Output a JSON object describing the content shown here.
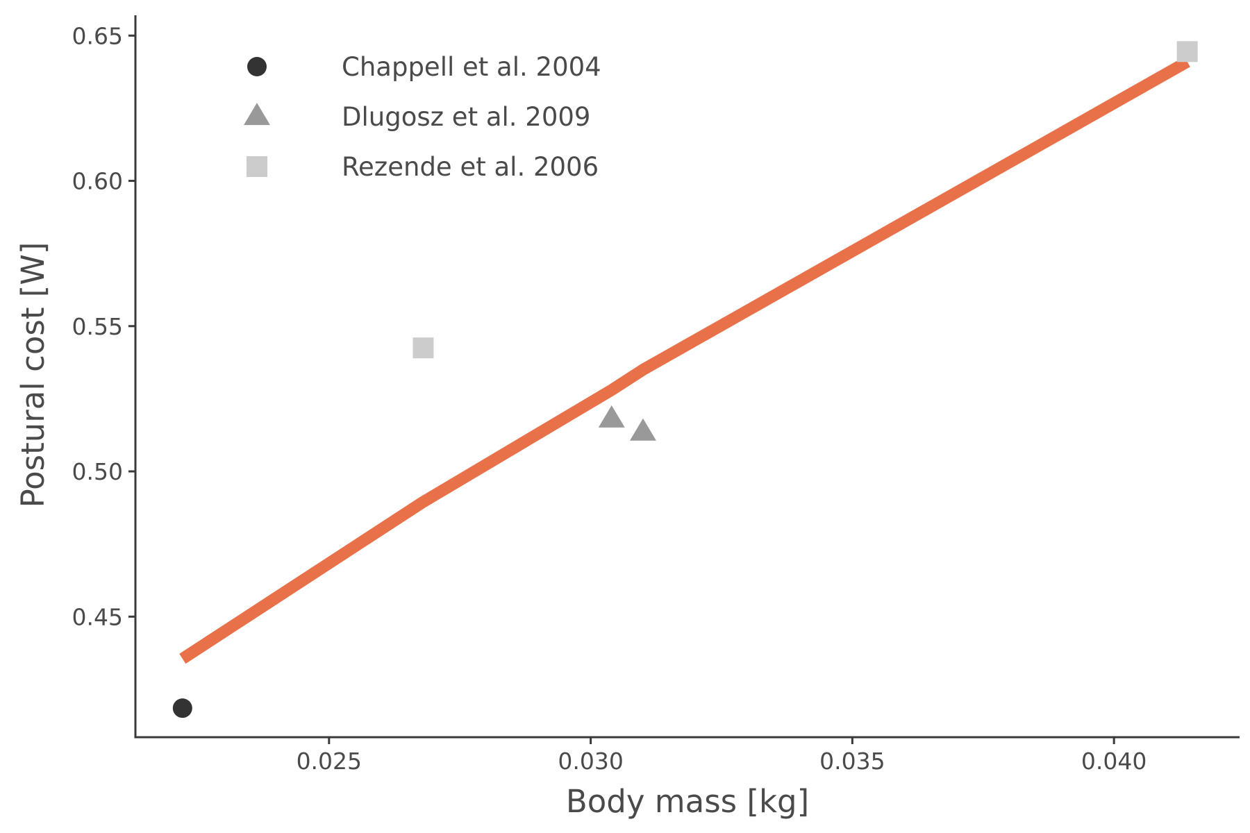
{
  "chart_data": {
    "type": "scatter",
    "xlabel": "Body mass [kg]",
    "ylabel": "Postural cost [W]",
    "xlim": [
      0.0213,
      0.0424
    ],
    "ylim": [
      0.4085,
      0.657
    ],
    "x_ticks": [
      0.025,
      0.03,
      0.035,
      0.04
    ],
    "x_tick_labels": [
      "0.025",
      "0.030",
      "0.035",
      "0.040"
    ],
    "y_ticks": [
      0.45,
      0.5,
      0.55,
      0.6,
      0.65
    ],
    "y_tick_labels": [
      "0.45",
      "0.50",
      "0.55",
      "0.60",
      "0.65"
    ],
    "grid": false,
    "legend_position": "top-left",
    "series": [
      {
        "name": "Chappell et al. 2004",
        "marker": "circle",
        "color": "#333333",
        "points": [
          {
            "x": 0.0222,
            "y": 0.4185
          }
        ]
      },
      {
        "name": "Dlugosz et al. 2009",
        "marker": "triangle",
        "color": "#999999",
        "points": [
          {
            "x": 0.0304,
            "y": 0.518
          },
          {
            "x": 0.031,
            "y": 0.5135
          }
        ]
      },
      {
        "name": "Rezende et al. 2006",
        "marker": "square",
        "color": "#cccccc",
        "points": [
          {
            "x": 0.0268,
            "y": 0.5425
          },
          {
            "x": 0.0414,
            "y": 0.6445
          }
        ]
      }
    ],
    "fit_line": {
      "color": "#e8714a",
      "points": [
        {
          "x": 0.0222,
          "y": 0.4355
        },
        {
          "x": 0.0268,
          "y": 0.4895
        },
        {
          "x": 0.0304,
          "y": 0.528
        },
        {
          "x": 0.031,
          "y": 0.535
        },
        {
          "x": 0.0414,
          "y": 0.641
        }
      ]
    }
  }
}
